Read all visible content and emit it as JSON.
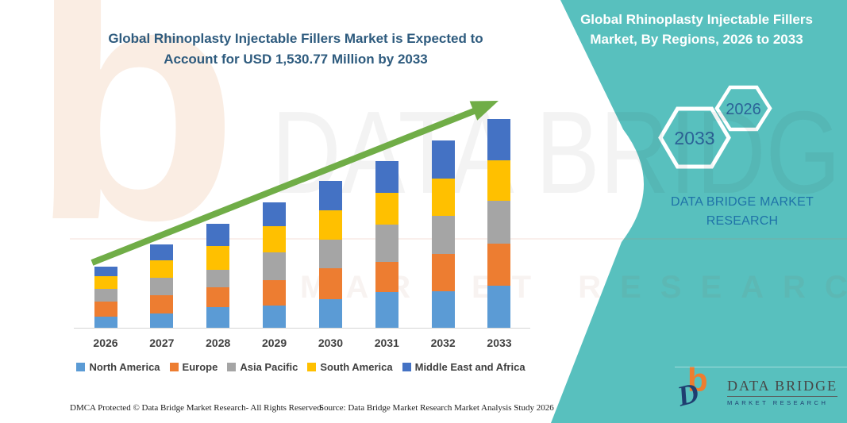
{
  "header": {
    "left_title": [
      "Global Rhinoplasty Injectable Fillers Market is Expected to",
      "Account for USD 1,530.77 Million by 2033"
    ],
    "right_title": [
      "Global Rhinoplasty Injectable Fillers",
      "Market, By Regions, 2026 to 2033"
    ]
  },
  "side_panel": {
    "hexagon_years": [
      "2033",
      "2026"
    ],
    "caption": [
      "DATA BRIDGE MARKET",
      "RESEARCH"
    ]
  },
  "watermark": {
    "monogram": "b",
    "brand": "DATA BRIDGE",
    "sub": "MARKET RESEARCH"
  },
  "logo": {
    "monogram_b": "b",
    "monogram_d": "D",
    "brand": "DATA BRIDGE",
    "sub": "MARKET RESEARCH"
  },
  "footer": {
    "dmca": "DMCA Protected © Data Bridge Market Research-  All Rights Reserved.",
    "source": "Source: Data Bridge Market Research  Market Analysis Study 2026"
  },
  "colors": {
    "teal_band": "#58C0BE",
    "title_navy": "#2E5B7E",
    "caption_blue": "#1F73A8",
    "hex_year_blue": "#2B6398",
    "axis_gray": "#D6D6D6",
    "label_gray": "#3F3F3F",
    "arrow_green": "#70AD47",
    "logo_orange": "#EE7D2F",
    "logo_navy": "#1F3E70"
  },
  "chart_data": {
    "type": "bar",
    "stacked": true,
    "title": "Global Rhinoplasty Injectable Fillers Market, By Regions, 2026 to 2033",
    "note": "No numeric value axis is shown in the figure; series values are relative stacked-segment heights (pixels). Headline states the market reaches USD 1,530.77 Million by 2033.",
    "categories": [
      "2026",
      "2027",
      "2028",
      "2029",
      "2030",
      "2031",
      "2032",
      "2033"
    ],
    "series": [
      {
        "name": "North America",
        "color": "#5B9BD5",
        "values": [
          14,
          18,
          26,
          28,
          36,
          45,
          46,
          53
        ]
      },
      {
        "name": "Europe",
        "color": "#ED7D31",
        "values": [
          19,
          23,
          25,
          32,
          39,
          38,
          47,
          53
        ]
      },
      {
        "name": "Asia Pacific",
        "color": "#A5A5A5",
        "values": [
          16,
          22,
          22,
          35,
          36,
          47,
          48,
          54
        ]
      },
      {
        "name": "South America",
        "color": "#FFC000",
        "values": [
          16,
          22,
          30,
          33,
          37,
          40,
          47,
          51
        ]
      },
      {
        "name": "Middle East and Africa",
        "color": "#4472C4",
        "values": [
          12,
          20,
          28,
          30,
          37,
          40,
          48,
          52
        ]
      }
    ],
    "stack_totals": [
      77,
      105,
      131,
      158,
      185,
      210,
      236,
      263
    ],
    "legend_position": "bottom",
    "grid": false,
    "trend_arrow": true
  }
}
